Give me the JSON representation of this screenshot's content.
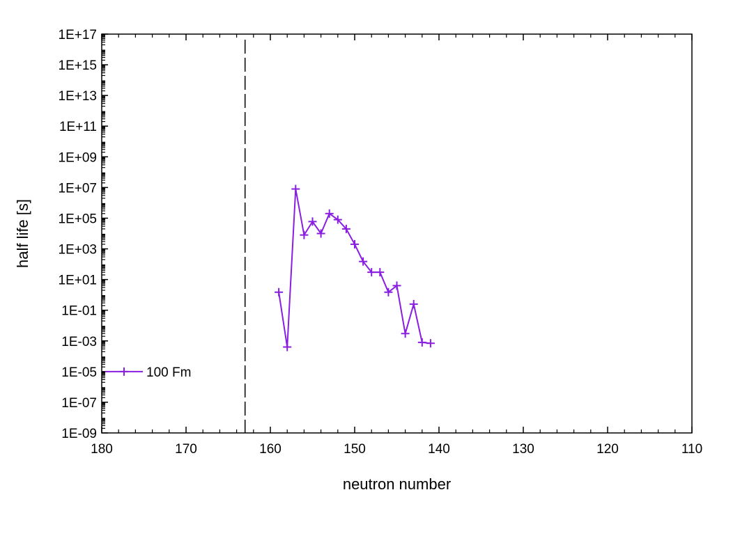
{
  "chart_data": {
    "type": "line",
    "title": "",
    "xlabel": "neutron number",
    "ylabel": "half life [s]",
    "x_reversed": true,
    "xlim": [
      180,
      110
    ],
    "y_scale": "log",
    "ylim": [
      1e-09,
      1e+17
    ],
    "x_ticks": [
      "180",
      "170",
      "160",
      "150",
      "140",
      "130",
      "120",
      "110"
    ],
    "x_tick_values": [
      180,
      170,
      160,
      150,
      140,
      130,
      120,
      110
    ],
    "y_ticks": [
      "1E-09",
      "1E-07",
      "1E-05",
      "1E-03",
      "1E-01",
      "1E+01",
      "1E+03",
      "1E+05",
      "1E+07",
      "1E+09",
      "1E+11",
      "1E+13",
      "1E+15",
      "1E+17"
    ],
    "y_tick_values": [
      1e-09,
      1e-07,
      1e-05,
      0.001,
      0.1,
      10.0,
      1000.0,
      100000.0,
      10000000.0,
      1000000000.0,
      100000000000.0,
      10000000000000.0,
      1000000000000000.0,
      1e+17
    ],
    "reference_line": {
      "x": 163,
      "style": "dashed"
    },
    "legend_position": "bottom-left",
    "grid": false,
    "series": [
      {
        "name": "100 Fm",
        "color": "#8a1ee0",
        "marker": "plus",
        "x": [
          159,
          158,
          157,
          156,
          155,
          154,
          153,
          152,
          151,
          150,
          149,
          148,
          147,
          146,
          145,
          144,
          143,
          142,
          141
        ],
        "y": [
          1.5,
          0.0004,
          8000000,
          8000,
          60000,
          10000,
          200000,
          80000,
          20000,
          2000,
          150,
          30,
          30,
          1.5,
          4,
          0.003,
          0.25,
          0.0008,
          0.0007
        ]
      }
    ]
  }
}
